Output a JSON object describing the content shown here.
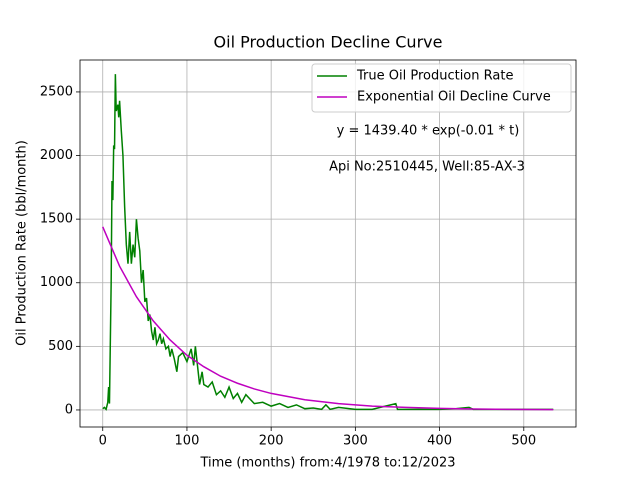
{
  "chart_data": {
    "type": "line",
    "title": "Oil Production Decline Curve",
    "x_label": "Time (months) from:4/1978 to:12/2023",
    "y_label": "Oil Production Rate (bbl/month)",
    "annotations": [
      "y = 1439.40 * exp(-0.01 * t)",
      "Api No:2510445, Well:85-AX-3"
    ],
    "xlim": [
      -27,
      562
    ],
    "ylim": [
      -134,
      2751
    ],
    "xticks": [
      0,
      100,
      200,
      300,
      400,
      500
    ],
    "yticks": [
      0,
      500,
      1000,
      1500,
      2000,
      2500
    ],
    "grid": true,
    "legend": "upper right",
    "series": [
      {
        "name": "True Oil Production Rate",
        "color": "#008000",
        "x": [
          0,
          2,
          4,
          6,
          7,
          8,
          10,
          11,
          12,
          13,
          14,
          15,
          16,
          18,
          19,
          20,
          22,
          24,
          26,
          28,
          30,
          32,
          34,
          36,
          38,
          40,
          42,
          44,
          46,
          48,
          50,
          52,
          54,
          56,
          58,
          60,
          62,
          64,
          66,
          68,
          70,
          72,
          75,
          78,
          80,
          82,
          85,
          88,
          90,
          95,
          100,
          105,
          108,
          110,
          112,
          115,
          118,
          120,
          125,
          130,
          135,
          140,
          145,
          150,
          155,
          160,
          165,
          170,
          180,
          190,
          200,
          210,
          220,
          230,
          240,
          250,
          260,
          265,
          270,
          280,
          300,
          320,
          348,
          350,
          380,
          400,
          420,
          435,
          440,
          460,
          500,
          535
        ],
        "values": [
          10,
          20,
          5,
          60,
          180,
          50,
          1000,
          1800,
          1650,
          2080,
          2050,
          2640,
          2350,
          2400,
          2300,
          2430,
          2200,
          2000,
          1600,
          1300,
          1150,
          1400,
          1150,
          1300,
          1200,
          1500,
          1350,
          1250,
          1000,
          1100,
          850,
          880,
          700,
          750,
          620,
          550,
          650,
          520,
          550,
          600,
          520,
          560,
          480,
          500,
          420,
          480,
          400,
          300,
          420,
          450,
          380,
          480,
          350,
          500,
          380,
          200,
          300,
          200,
          180,
          220,
          120,
          150,
          100,
          180,
          90,
          130,
          60,
          120,
          50,
          60,
          30,
          50,
          20,
          40,
          10,
          15,
          5,
          40,
          5,
          20,
          5,
          5,
          50,
          5,
          5,
          5,
          10,
          20,
          5,
          5,
          5,
          5
        ]
      },
      {
        "name": "Exponential Oil Decline Curve",
        "color": "#bf00bf",
        "x": [
          0,
          20,
          40,
          60,
          80,
          100,
          120,
          140,
          160,
          180,
          200,
          240,
          280,
          320,
          360,
          400,
          440,
          480,
          535
        ],
        "values": [
          1440,
          1130,
          890,
          700,
          550,
          430,
          340,
          265,
          210,
          165,
          130,
          80,
          50,
          30,
          20,
          12,
          8,
          5,
          3
        ]
      }
    ]
  }
}
